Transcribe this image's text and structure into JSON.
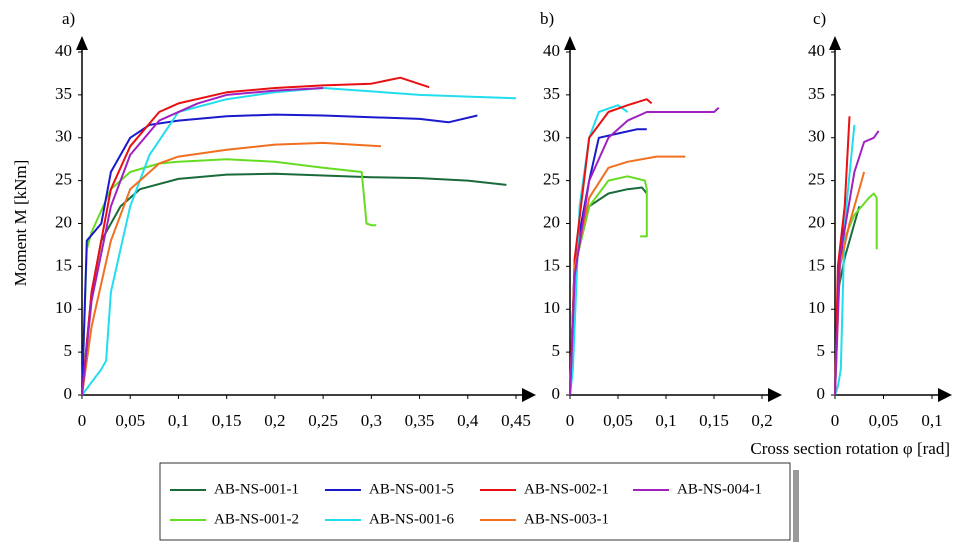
{
  "chart_data": [
    {
      "type": "line",
      "title": "a)",
      "y_label": "Moment M [kNm]",
      "xlim": [
        0,
        0.45
      ],
      "ylim": [
        0,
        40
      ],
      "xticks": [
        0,
        {
          "value": 0.05,
          "label": "0,05"
        },
        {
          "value": 0.1,
          "label": "0,1"
        },
        {
          "value": 0.15,
          "label": "0,15"
        },
        {
          "value": 0.2,
          "label": "0,2"
        },
        {
          "value": 0.25,
          "label": "0,25"
        },
        {
          "value": 0.3,
          "label": "0,3"
        },
        {
          "value": 0.35,
          "label": "0,35"
        },
        {
          "value": 0.4,
          "label": "0,4"
        },
        {
          "value": 0.45,
          "label": "0,45"
        }
      ],
      "yticks": [
        0,
        5,
        10,
        15,
        20,
        25,
        30,
        35,
        40
      ],
      "series": [
        {
          "name": "AB-NS-001-1",
          "color": "#1a6b3a",
          "x": [
            0,
            0.01,
            0.02,
            0.04,
            0.06,
            0.1,
            0.15,
            0.2,
            0.25,
            0.3,
            0.35,
            0.4,
            0.44
          ],
          "values": [
            0,
            12,
            18,
            22,
            24,
            25.2,
            25.7,
            25.8,
            25.6,
            25.4,
            25.3,
            25.0,
            24.5
          ]
        },
        {
          "name": "AB-NS-001-2",
          "color": "#66dd22",
          "x": [
            0,
            0.005,
            0.01,
            0.03,
            0.05,
            0.08,
            0.1,
            0.15,
            0.2,
            0.25,
            0.29,
            0.295,
            0.3,
            0.305
          ],
          "values": [
            0,
            17,
            19,
            24,
            26,
            27,
            27.2,
            27.5,
            27.2,
            26.5,
            26,
            20,
            19.8,
            19.8
          ]
        },
        {
          "name": "AB-NS-001-5",
          "color": "#1a1acc",
          "x": [
            0,
            0.005,
            0.02,
            0.03,
            0.05,
            0.07,
            0.1,
            0.15,
            0.2,
            0.25,
            0.3,
            0.35,
            0.38,
            0.41
          ],
          "values": [
            0,
            18,
            20,
            26,
            30,
            31.5,
            32,
            32.5,
            32.7,
            32.6,
            32.4,
            32.2,
            31.8,
            32.6
          ]
        },
        {
          "name": "AB-NS-001-6",
          "color": "#22ddee",
          "x": [
            0,
            0.02,
            0.025,
            0.03,
            0.05,
            0.07,
            0.1,
            0.15,
            0.2,
            0.25,
            0.3,
            0.35,
            0.4,
            0.45
          ],
          "values": [
            0,
            3,
            4,
            12,
            22,
            28,
            33,
            34.5,
            35.3,
            35.8,
            35.4,
            35,
            34.8,
            34.6
          ]
        },
        {
          "name": "AB-NS-002-1",
          "color": "#e81010",
          "x": [
            0,
            0.01,
            0.03,
            0.05,
            0.08,
            0.1,
            0.15,
            0.2,
            0.25,
            0.3,
            0.33,
            0.36
          ],
          "values": [
            0,
            12,
            24,
            29,
            33,
            34,
            35.3,
            35.8,
            36.1,
            36.3,
            37,
            35.9
          ]
        },
        {
          "name": "AB-NS-003-1",
          "color": "#f07020",
          "x": [
            0,
            0.01,
            0.03,
            0.05,
            0.08,
            0.1,
            0.15,
            0.2,
            0.25,
            0.31
          ],
          "values": [
            0,
            8,
            18,
            24,
            27,
            27.8,
            28.6,
            29.2,
            29.4,
            29.0
          ]
        },
        {
          "name": "AB-NS-004-1",
          "color": "#a020c0",
          "x": [
            0,
            0.01,
            0.03,
            0.05,
            0.08,
            0.12,
            0.15,
            0.2,
            0.25
          ],
          "values": [
            0,
            11,
            22,
            28,
            32,
            34,
            35,
            35.5,
            35.8
          ]
        }
      ]
    },
    {
      "type": "line",
      "title": "b)",
      "xlim": [
        0,
        0.2
      ],
      "ylim": [
        0,
        40
      ],
      "xticks": [
        0,
        {
          "value": 0.05,
          "label": "0,05"
        },
        {
          "value": 0.1,
          "label": "0,1"
        },
        {
          "value": 0.15,
          "label": "0,15"
        },
        {
          "value": 0.2,
          "label": "0,2"
        }
      ],
      "yticks": [
        0,
        5,
        10,
        15,
        20,
        25,
        30,
        35,
        40
      ],
      "series": [
        {
          "color": "#1a6b3a",
          "x": [
            0,
            0.005,
            0.02,
            0.04,
            0.06,
            0.075,
            0.08
          ],
          "values": [
            0,
            15,
            22,
            23.5,
            24,
            24.2,
            23.5
          ]
        },
        {
          "color": "#66dd22",
          "x": [
            0,
            0.005,
            0.02,
            0.04,
            0.06,
            0.078,
            0.08,
            0.08,
            0.073
          ],
          "values": [
            0,
            15,
            22,
            25,
            25.5,
            25,
            24,
            18.5,
            18.5
          ]
        },
        {
          "color": "#1a1acc",
          "x": [
            0,
            0.005,
            0.02,
            0.03,
            0.05,
            0.07,
            0.08
          ],
          "values": [
            0,
            16,
            25,
            30,
            30.5,
            31,
            31
          ]
        },
        {
          "color": "#22ddee",
          "x": [
            0,
            0.003,
            0.01,
            0.02,
            0.03,
            0.05,
            0.06
          ],
          "values": [
            0,
            3,
            22,
            30,
            33,
            33.8,
            33
          ]
        },
        {
          "color": "#e81010",
          "x": [
            0,
            0.005,
            0.02,
            0.04,
            0.06,
            0.08,
            0.085
          ],
          "values": [
            0,
            16,
            30,
            33,
            33.8,
            34.5,
            34
          ]
        },
        {
          "color": "#f07020",
          "x": [
            0,
            0.005,
            0.02,
            0.04,
            0.06,
            0.09,
            0.12
          ],
          "values": [
            0,
            15,
            23,
            26.5,
            27.2,
            27.8,
            27.8
          ]
        },
        {
          "color": "#a020c0",
          "x": [
            0,
            0.005,
            0.02,
            0.04,
            0.06,
            0.08,
            0.1,
            0.15,
            0.155
          ],
          "values": [
            0,
            14,
            25,
            30,
            32,
            33,
            33,
            33,
            33.5
          ]
        }
      ]
    },
    {
      "type": "line",
      "title": "c)",
      "x_label": "Cross section rotation φ [rad]",
      "xlim": [
        0,
        0.1
      ],
      "ylim": [
        0,
        40
      ],
      "xticks": [
        0,
        {
          "value": 0.05,
          "label": "0,05"
        },
        {
          "value": 0.1,
          "label": "0,1"
        }
      ],
      "yticks": [
        0,
        5,
        10,
        15,
        20,
        25,
        30,
        35,
        40
      ],
      "series": [
        {
          "color": "#1a6b3a",
          "x": [
            0,
            0.003,
            0.01,
            0.02,
            0.025
          ],
          "values": [
            0,
            12,
            16,
            20,
            22
          ]
        },
        {
          "color": "#66dd22",
          "x": [
            0,
            0.005,
            0.02,
            0.035,
            0.04,
            0.043,
            0.043
          ],
          "values": [
            0,
            17,
            21,
            23,
            23.5,
            23,
            17
          ]
        },
        {
          "color": "#1a1acc",
          "x": [
            0,
            0.003,
            0.008,
            0.012
          ],
          "values": [
            0,
            13,
            18,
            23
          ]
        },
        {
          "color": "#22ddee",
          "x": [
            0,
            0.003,
            0.006,
            0.01,
            0.02
          ],
          "values": [
            0,
            1,
            3,
            20,
            31.5
          ]
        },
        {
          "color": "#e81010",
          "x": [
            0,
            0.003,
            0.01,
            0.015
          ],
          "values": [
            0,
            15,
            22,
            32.5
          ]
        },
        {
          "color": "#f07020",
          "x": [
            0,
            0.005,
            0.015,
            0.025,
            0.03
          ],
          "values": [
            0,
            15,
            20,
            24,
            26
          ]
        },
        {
          "color": "#a020c0",
          "x": [
            0,
            0.005,
            0.02,
            0.03,
            0.04,
            0.045
          ],
          "values": [
            0,
            16,
            26,
            29.5,
            30,
            30.8
          ]
        }
      ]
    }
  ]
}
